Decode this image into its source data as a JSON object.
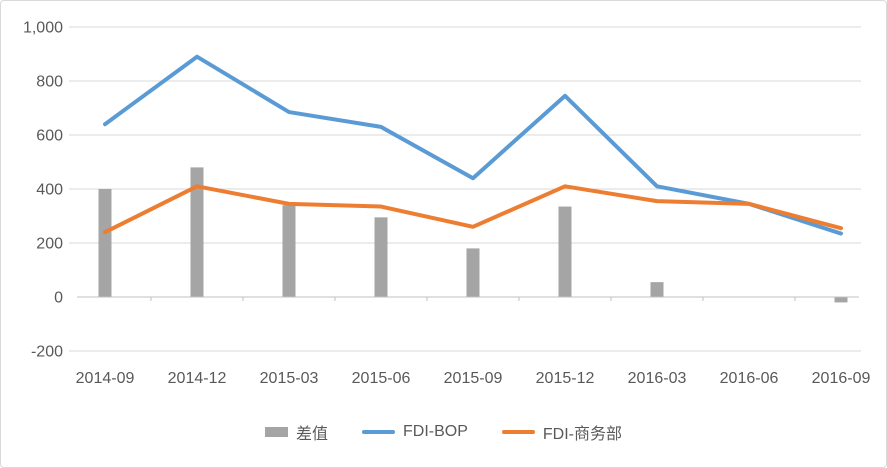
{
  "chart_data": {
    "type": "combo",
    "title": "",
    "xlabel": "",
    "ylabel": "",
    "categories": [
      "2014-09",
      "2014-12",
      "2015-03",
      "2015-06",
      "2015-09",
      "2015-12",
      "2016-03",
      "2016-06",
      "2016-09"
    ],
    "series": [
      {
        "name": "差值",
        "type": "bar",
        "color": "#A5A5A5",
        "values": [
          400,
          480,
          340,
          295,
          180,
          335,
          55,
          0,
          -20
        ]
      },
      {
        "name": "FDI-BOP",
        "type": "line",
        "color": "#5B9BD5",
        "values": [
          640,
          890,
          685,
          630,
          440,
          745,
          410,
          345,
          235
        ]
      },
      {
        "name": "FDI-商务部",
        "type": "line",
        "color": "#ED7D31",
        "values": [
          240,
          410,
          345,
          335,
          260,
          410,
          355,
          345,
          255
        ]
      }
    ],
    "ylim": [
      -200,
      1000
    ],
    "ytick_interval": 200,
    "yticks": [
      {
        "value": 1000,
        "label": "1,000"
      },
      {
        "value": 800,
        "label": "800"
      },
      {
        "value": 600,
        "label": "600"
      },
      {
        "value": 400,
        "label": "400"
      },
      {
        "value": 200,
        "label": "200"
      },
      {
        "value": 0,
        "label": "0"
      },
      {
        "value": -200,
        "label": "-200"
      }
    ],
    "grid": true,
    "legend_position": "bottom"
  },
  "colors": {
    "gridline": "#D9D9D9",
    "axis_line": "#C0C0C0",
    "text": "#595959",
    "border": "#D9D9D9",
    "background": "#FFFFFF"
  }
}
